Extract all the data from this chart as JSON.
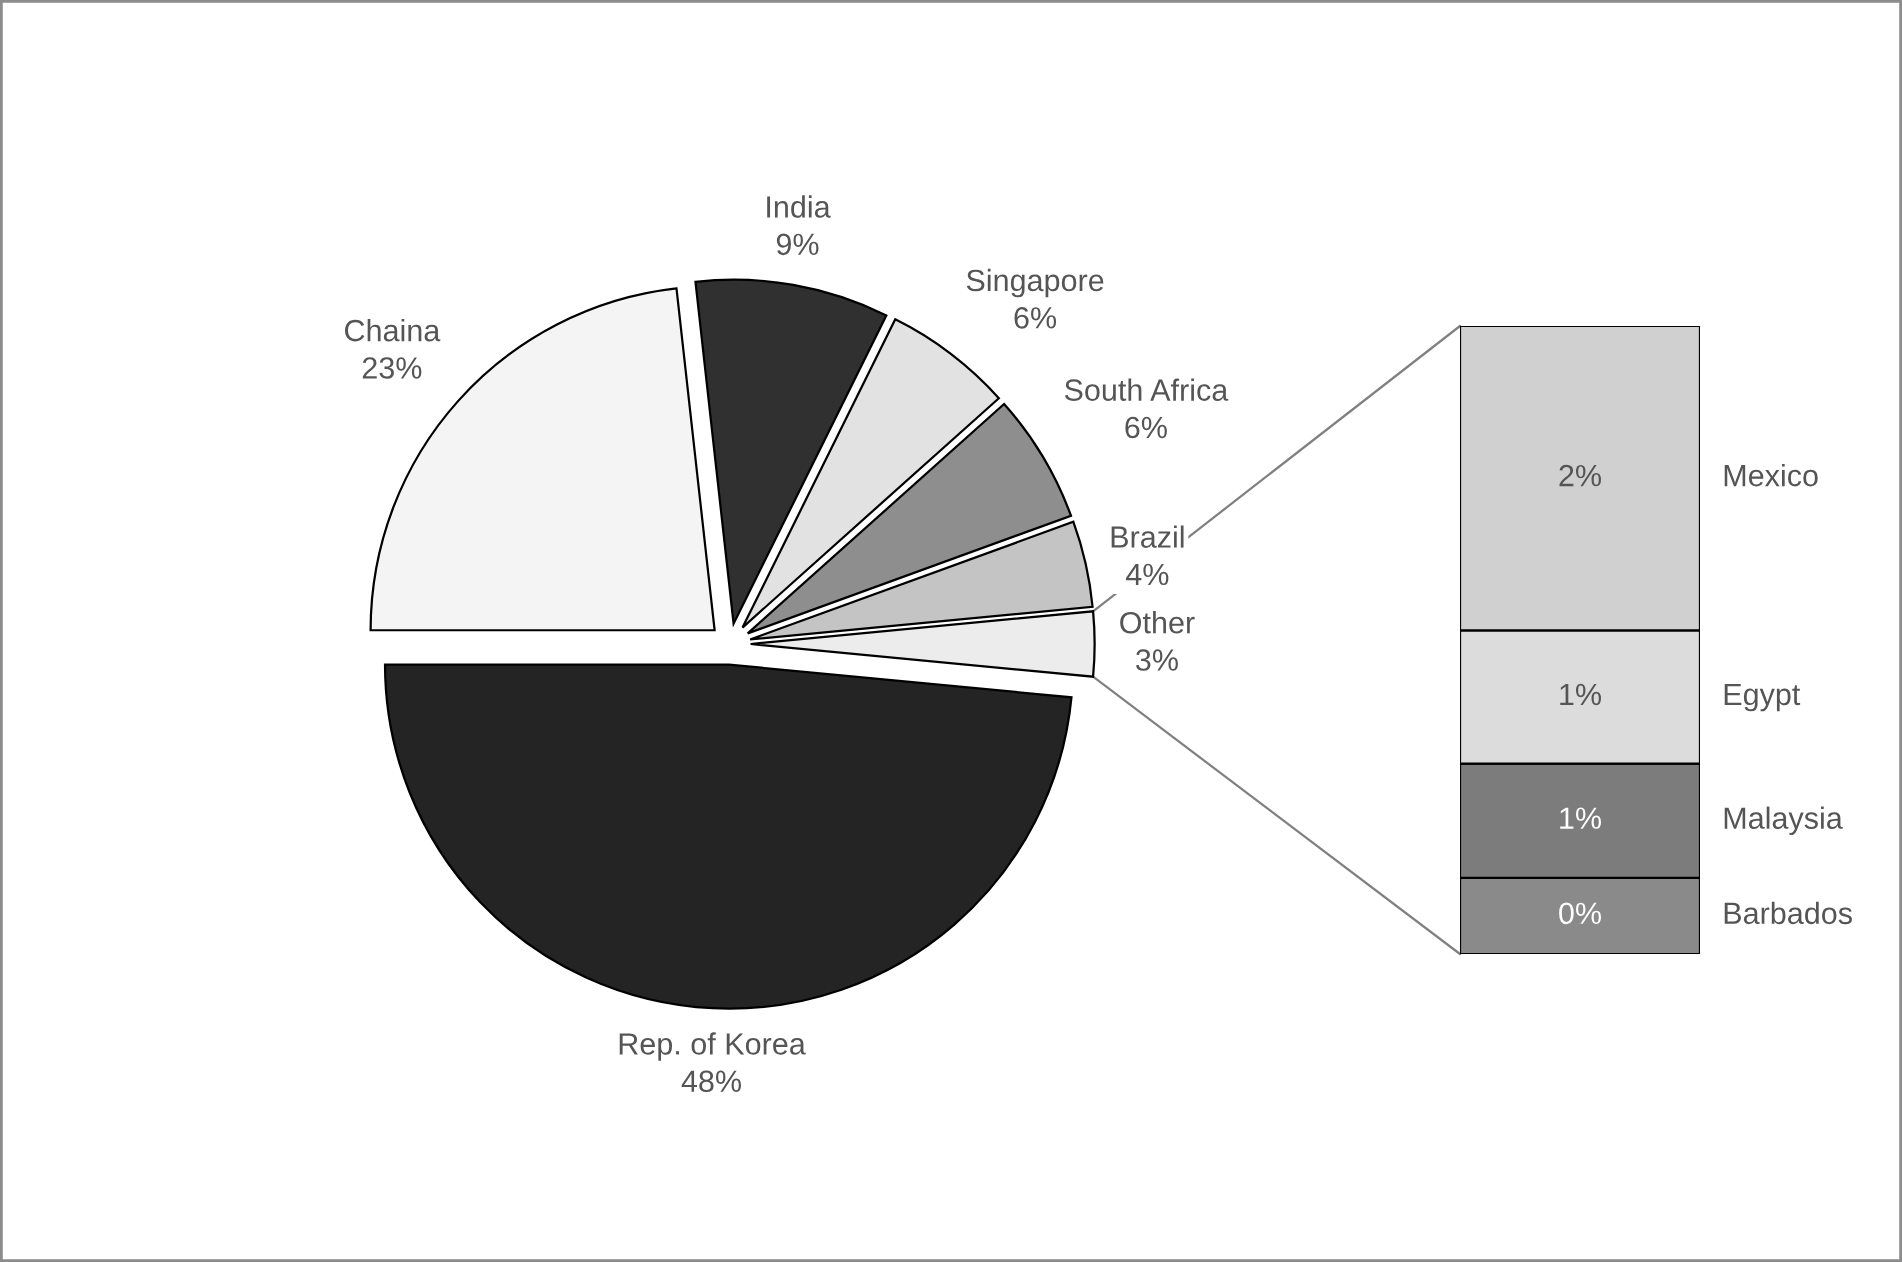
{
  "chart_data": [
    {
      "type": "pie",
      "categories": [
        "Rep. of Korea",
        "Chaina",
        "India",
        "Singapore",
        "South Africa",
        "Brazil",
        "Other"
      ],
      "values": [
        48,
        23,
        9,
        6,
        6,
        4,
        3
      ],
      "colors": [
        "#242424",
        "#f4f4f4",
        "#303030",
        "#e2e2e2",
        "#8e8e8e",
        "#c4c4c4",
        "#ececec"
      ],
      "value_labels": [
        "48%",
        "23%",
        "9%",
        "6%",
        "6%",
        "4%",
        "3%"
      ]
    },
    {
      "type": "bar",
      "stacked": true,
      "categories": [
        null
      ],
      "series": [
        {
          "name": "Barbados",
          "color": "#8a8a8a",
          "values": [
            0.4
          ],
          "value_labels": [
            "0%"
          ]
        },
        {
          "name": "Malaysia",
          "color": "#7c7c7c",
          "values": [
            0.6
          ],
          "value_labels": [
            "1%"
          ]
        },
        {
          "name": "Egypt",
          "color": "#dcdcdc",
          "values": [
            0.7
          ],
          "value_labels": [
            "1%"
          ]
        },
        {
          "name": "Mexico",
          "color": "#d0d0d0",
          "values": [
            1.6
          ],
          "value_labels": [
            "2%"
          ]
        }
      ]
    }
  ]
}
